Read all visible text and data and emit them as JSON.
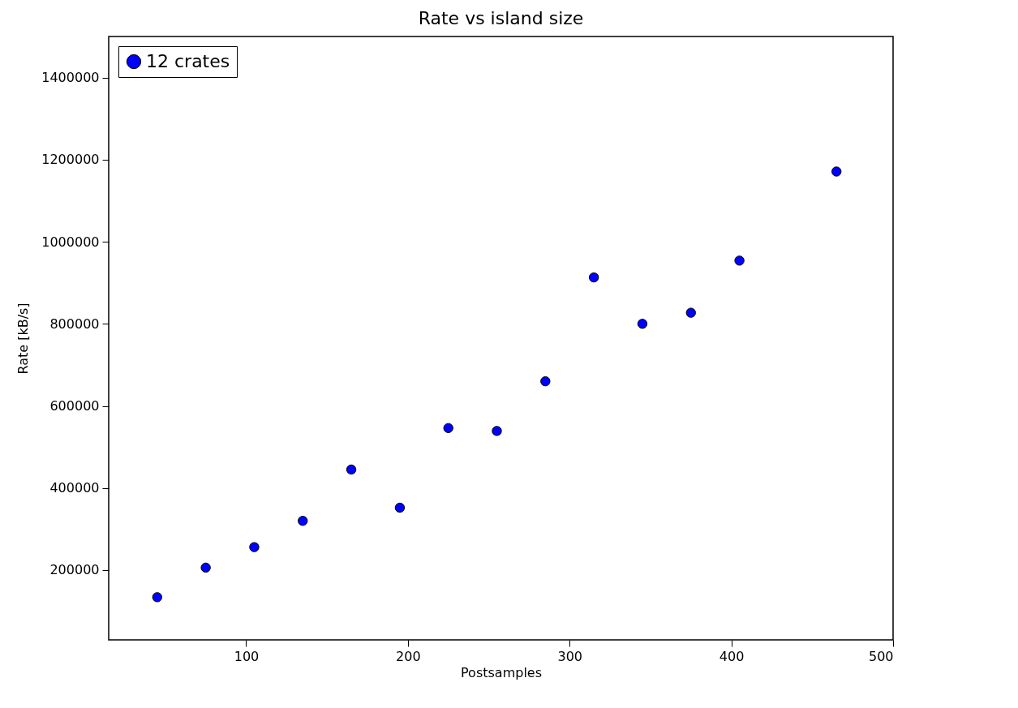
{
  "chart_data": {
    "type": "scatter",
    "title": "Rate vs island size",
    "xlabel": "Postsamples",
    "ylabel": "Rate [kB/s]",
    "x": [
      45,
      75,
      105,
      135,
      165,
      195,
      225,
      255,
      285,
      315,
      345,
      375,
      405,
      465
    ],
    "series": [
      {
        "name": "12 crates",
        "color": "#0000ff",
        "values": [
          134000,
          206000,
          256000,
          320000,
          445000,
          352000,
          546000,
          539000,
          660000,
          913000,
          800000,
          827000,
          954000,
          1171000
        ]
      }
    ],
    "xlim": [
      15,
      500
    ],
    "xticks": [
      100,
      200,
      300,
      400,
      500
    ],
    "ylim": [
      30000,
      1500000
    ],
    "yticks": [
      200000,
      400000,
      600000,
      800000,
      1000000,
      1200000,
      1400000
    ],
    "grid": false,
    "legend": "top left",
    "marker": "circle"
  }
}
